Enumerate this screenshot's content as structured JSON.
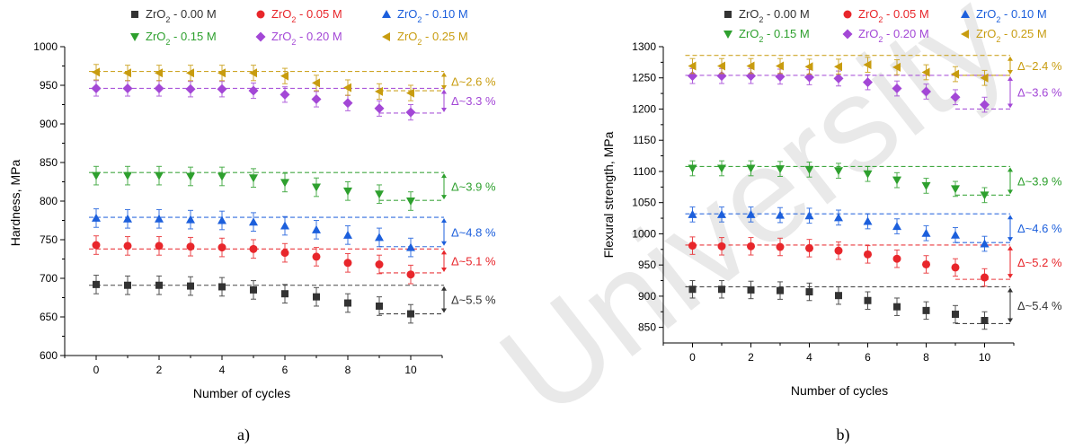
{
  "chart_data": [
    {
      "type": "scatter",
      "caption": "a)",
      "xlabel": "Number of cycles",
      "ylabel": "Hardness, MPa",
      "xlim": [
        -1,
        11
      ],
      "ylim": [
        600,
        1000
      ],
      "xticks": [
        0,
        2,
        4,
        6,
        8,
        10
      ],
      "yticks": [
        600,
        650,
        700,
        750,
        800,
        850,
        900,
        950,
        1000
      ],
      "x": [
        0,
        1,
        2,
        3,
        4,
        5,
        6,
        7,
        8,
        9,
        10
      ],
      "series": [
        {
          "name": "ZrO2 - 0.00 M",
          "color": "#333333",
          "marker": "square",
          "values": [
            692,
            691,
            691,
            690,
            689,
            685,
            680,
            676,
            668,
            664,
            654
          ],
          "err": 12,
          "baseline": 691,
          "low": 654,
          "delta": "Δ~5.5 %"
        },
        {
          "name": "ZrO2 - 0.05 M",
          "color": "#e8262b",
          "marker": "circle",
          "values": [
            743,
            742,
            742,
            741,
            740,
            738,
            733,
            728,
            720,
            718,
            705
          ],
          "err": 12,
          "baseline": 738,
          "low": 707,
          "delta": "Δ~5.1 %"
        },
        {
          "name": "ZrO2 - 0.10 M",
          "color": "#1c5fdc",
          "marker": "triangle-up",
          "values": [
            778,
            777,
            777,
            776,
            775,
            773,
            768,
            763,
            756,
            753,
            740
          ],
          "err": 12,
          "baseline": 779,
          "low": 741,
          "delta": "Δ~4.8 %"
        },
        {
          "name": "ZrO2 - 0.15 M",
          "color": "#2ea02e",
          "marker": "triangle-down",
          "values": [
            833,
            833,
            833,
            832,
            832,
            830,
            824,
            818,
            813,
            809,
            800
          ],
          "err": 12,
          "baseline": 837,
          "low": 801,
          "delta": "Δ~3.9 %"
        },
        {
          "name": "ZrO2 - 0.20 M",
          "color": "#a347d6",
          "marker": "diamond",
          "values": [
            946,
            946,
            946,
            945,
            945,
            943,
            938,
            932,
            927,
            920,
            915
          ],
          "err": 10,
          "baseline": 946,
          "low": 914,
          "delta": "Δ~3.3 %"
        },
        {
          "name": "ZrO2 - 0.25 M",
          "color": "#c89c0f",
          "marker": "triangle-left",
          "values": [
            967,
            966,
            966,
            966,
            966,
            966,
            962,
            953,
            947,
            942,
            940
          ],
          "err": 10,
          "baseline": 968,
          "low": 943,
          "delta": "Δ~2.6 %"
        }
      ]
    },
    {
      "type": "scatter",
      "caption": "b)",
      "xlabel": "Number of cycles",
      "ylabel": "Flexural strength, MPa",
      "xlim": [
        -1,
        11
      ],
      "ylim": [
        825,
        1300
      ],
      "xticks": [
        0,
        2,
        4,
        6,
        8,
        10
      ],
      "yticks": [
        850,
        900,
        950,
        1000,
        1050,
        1100,
        1150,
        1200,
        1250,
        1300
      ],
      "x": [
        0,
        1,
        2,
        3,
        4,
        5,
        6,
        7,
        8,
        9,
        10
      ],
      "series": [
        {
          "name": "ZrO2 - 0.00 M",
          "color": "#333333",
          "marker": "square",
          "values": [
            911,
            911,
            910,
            909,
            907,
            901,
            893,
            883,
            877,
            871,
            861
          ],
          "err": 14,
          "baseline": 915,
          "low": 856,
          "delta": "Δ~5.4 %"
        },
        {
          "name": "ZrO2 - 0.05 M",
          "color": "#e8262b",
          "marker": "circle",
          "values": [
            981,
            980,
            980,
            979,
            977,
            973,
            967,
            960,
            951,
            946,
            930
          ],
          "err": 14,
          "baseline": 982,
          "low": 927,
          "delta": "Δ~5.2 %"
        },
        {
          "name": "ZrO2 - 0.10 M",
          "color": "#1c5fdc",
          "marker": "triangle-up",
          "values": [
            1031,
            1031,
            1031,
            1030,
            1029,
            1026,
            1020,
            1012,
            1001,
            998,
            984
          ],
          "err": 12,
          "baseline": 1032,
          "low": 986,
          "delta": "Δ~4.6 %"
        },
        {
          "name": "ZrO2 - 0.15 M",
          "color": "#2ea02e",
          "marker": "triangle-down",
          "values": [
            1105,
            1105,
            1105,
            1104,
            1103,
            1101,
            1096,
            1086,
            1077,
            1072,
            1062
          ],
          "err": 12,
          "baseline": 1108,
          "low": 1062,
          "delta": "Δ~3.9 %"
        },
        {
          "name": "ZrO2 - 0.20 M",
          "color": "#a347d6",
          "marker": "diamond",
          "values": [
            1253,
            1253,
            1253,
            1252,
            1251,
            1249,
            1243,
            1233,
            1228,
            1219,
            1207
          ],
          "err": 12,
          "baseline": 1254,
          "low": 1200,
          "delta": "Δ~3.6 %"
        },
        {
          "name": "ZrO2 - 0.25 M",
          "color": "#c89c0f",
          "marker": "triangle-left",
          "values": [
            1269,
            1269,
            1269,
            1269,
            1268,
            1268,
            1271,
            1267,
            1259,
            1256,
            1250
          ],
          "err": 12,
          "baseline": 1286,
          "low": 1254,
          "delta": "Δ~2.4 %"
        }
      ]
    }
  ],
  "watermark": "University"
}
